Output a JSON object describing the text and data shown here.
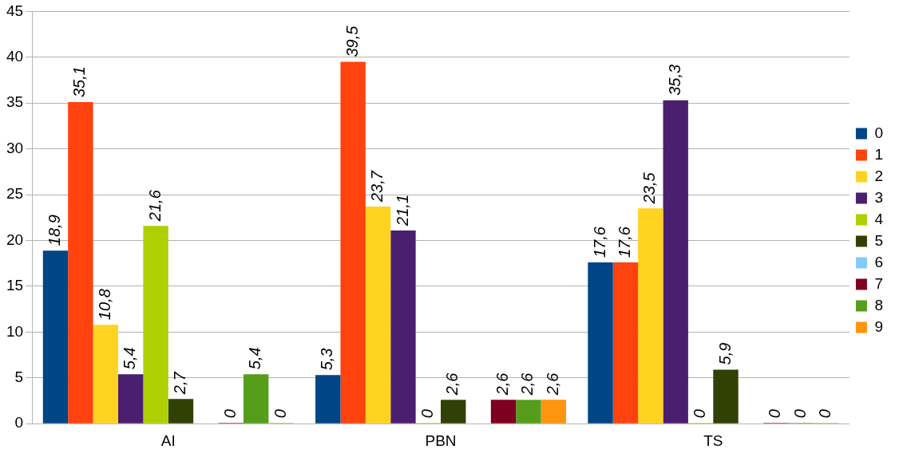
{
  "chart_data": {
    "type": "bar",
    "categories": [
      "AI",
      "PBN",
      "TS"
    ],
    "series": [
      {
        "name": "0",
        "color": "#004586",
        "values": [
          18.9,
          5.3,
          17.6
        ],
        "value_labels": [
          "18,9",
          "5,3",
          "17,6"
        ]
      },
      {
        "name": "1",
        "color": "#ff420e",
        "values": [
          35.1,
          39.5,
          17.6
        ],
        "value_labels": [
          "35,1",
          "39,5",
          "17,6"
        ]
      },
      {
        "name": "2",
        "color": "#ffd320",
        "values": [
          10.8,
          23.7,
          23.5
        ],
        "value_labels": [
          "10,8",
          "23,7",
          "23,5"
        ]
      },
      {
        "name": "3",
        "color": "#4b1f6f",
        "values": [
          5.4,
          21.1,
          35.3
        ],
        "value_labels": [
          "5,4",
          "21,1",
          "35,3"
        ]
      },
      {
        "name": "4",
        "color": "#aecf00",
        "values": [
          21.6,
          0,
          0
        ],
        "value_labels": [
          "21,6",
          "0",
          "0"
        ]
      },
      {
        "name": "5",
        "color": "#314004",
        "values": [
          2.7,
          2.6,
          5.9
        ],
        "value_labels": [
          "2,7",
          "2,6",
          "5,9"
        ]
      },
      {
        "name": "6",
        "color": "#83caff",
        "values": [
          null,
          null,
          null
        ],
        "value_labels": [
          null,
          null,
          null
        ]
      },
      {
        "name": "7",
        "color": "#7e0021",
        "values": [
          0,
          2.6,
          0
        ],
        "value_labels": [
          "0",
          "2,6",
          "0"
        ]
      },
      {
        "name": "8",
        "color": "#579d1c",
        "values": [
          5.4,
          2.6,
          0
        ],
        "value_labels": [
          "5,4",
          "2,6",
          "0"
        ]
      },
      {
        "name": "9",
        "color": "#ff950e",
        "values": [
          0,
          2.6,
          0
        ],
        "value_labels": [
          "0",
          "2,6",
          "0"
        ]
      }
    ],
    "ylim": [
      0,
      45
    ],
    "yticks": [
      0,
      5,
      10,
      15,
      20,
      25,
      30,
      35,
      40,
      45
    ],
    "grid": "y",
    "legend": "right"
  }
}
